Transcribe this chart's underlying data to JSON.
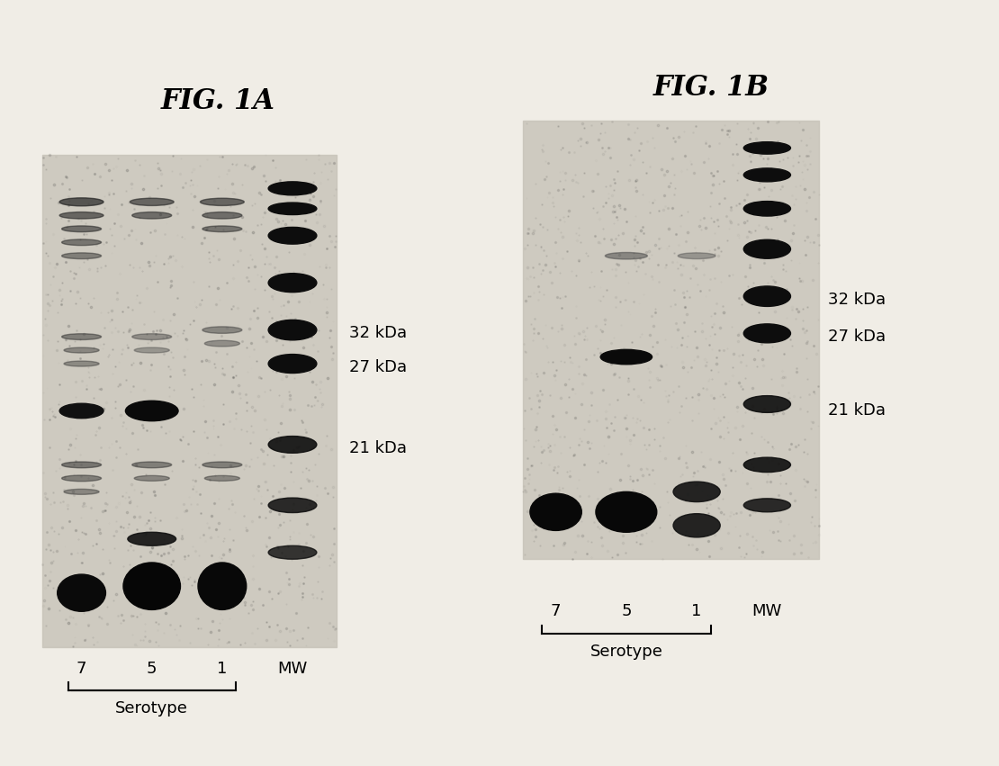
{
  "fig_title_A": "FIG. 1A",
  "fig_title_B": "FIG. 1B",
  "label_32": "32 kDa",
  "label_27": "27 kDa",
  "label_21": "21 kDa",
  "lane_labels": [
    "7",
    "5",
    "1",
    "MW"
  ],
  "serotype_label": "Serotype",
  "background_color": "#f5f5f0",
  "gel_bg": "#d8d4cc",
  "band_color": "#1a1a1a",
  "title_fontsize": 22,
  "label_fontsize": 13,
  "lane_fontsize": 13,
  "serotype_fontsize": 13
}
